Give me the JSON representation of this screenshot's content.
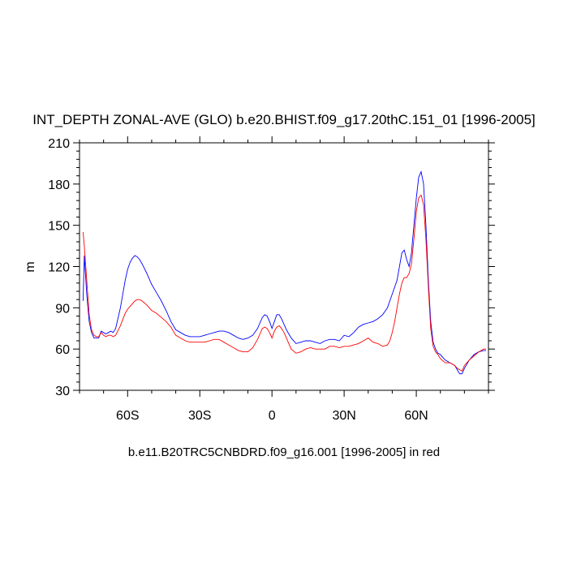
{
  "chart_data": {
    "type": "line",
    "title": "INT_DEPTH ZONAL-AVE (GLO) b.e20.BHIST.f09_g17.20thC.151_01 [1996-2005]",
    "xlabel": "b.e11.B20TRC5CNBDRD.f09_g16.001 [1996-2005] in red",
    "ylabel": "m",
    "xlim": [
      -80,
      90
    ],
    "ylim": [
      30,
      210
    ],
    "x_ticks": [
      -60,
      -30,
      0,
      30,
      60
    ],
    "x_tick_labels": [
      "60S",
      "30S",
      "0",
      "30N",
      "60N"
    ],
    "y_ticks": [
      30,
      60,
      90,
      120,
      150,
      180,
      210
    ],
    "y_tick_labels": [
      "30",
      "60",
      "90",
      "120",
      "150",
      "180",
      "210"
    ],
    "grid": false,
    "series": [
      {
        "color": "#0000ff",
        "x": [
          -78.5,
          -78,
          -77,
          -76,
          -75,
          -74,
          -73,
          -72,
          -71,
          -70,
          -69,
          -68,
          -67,
          -66,
          -65,
          -63,
          -61,
          -60,
          -59,
          -58,
          -57,
          -56,
          -55,
          -54,
          -52,
          -50,
          -48,
          -46,
          -44,
          -42,
          -40,
          -38,
          -36,
          -34,
          -32,
          -30,
          -28,
          -26,
          -24,
          -22,
          -20,
          -18,
          -16,
          -14,
          -12,
          -10,
          -8,
          -6,
          -5,
          -4,
          -3,
          -2,
          -1,
          0,
          1,
          2,
          3,
          4,
          5,
          6,
          7,
          8,
          10,
          12,
          14,
          16,
          18,
          20,
          22,
          24,
          26,
          28,
          30,
          32,
          34,
          36,
          38,
          40,
          42,
          44,
          46,
          48,
          49,
          50,
          51,
          52,
          53,
          54,
          55,
          56,
          57,
          58,
          59,
          60,
          61,
          62,
          63,
          64,
          65,
          66,
          67,
          68,
          69,
          70,
          72,
          74,
          76,
          77,
          78,
          79,
          80,
          82,
          84,
          86,
          88,
          89
        ],
        "y": [
          95,
          128,
          100,
          80,
          72,
          68,
          68,
          68,
          73,
          72,
          71,
          72,
          73,
          72,
          75,
          90,
          110,
          118,
          123,
          126,
          128,
          127,
          125,
          122,
          115,
          107,
          101,
          95,
          88,
          80,
          74,
          72,
          70,
          69,
          69,
          69,
          70,
          71,
          72,
          73,
          73,
          72,
          70,
          68,
          67,
          68,
          70,
          75,
          79,
          83,
          85,
          84,
          80,
          75,
          80,
          85,
          85,
          82,
          78,
          74,
          71,
          68,
          64,
          65,
          66,
          66,
          65,
          64,
          66,
          67,
          67,
          66,
          70,
          69,
          72,
          76,
          78,
          79,
          80,
          82,
          85,
          90,
          95,
          100,
          105,
          110,
          120,
          130,
          132,
          125,
          120,
          130,
          150,
          170,
          185,
          189,
          180,
          150,
          110,
          80,
          65,
          60,
          57,
          56,
          52,
          50,
          48,
          45,
          42,
          42,
          46,
          52,
          56,
          58,
          59,
          59
        ]
      },
      {
        "color": "#ff0000",
        "x": [
          -78.5,
          -78,
          -77,
          -76,
          -75,
          -74,
          -73,
          -72,
          -71,
          -70,
          -69,
          -68,
          -67,
          -66,
          -65,
          -63,
          -61,
          -60,
          -59,
          -58,
          -57,
          -56,
          -55,
          -54,
          -52,
          -50,
          -48,
          -46,
          -44,
          -42,
          -40,
          -38,
          -36,
          -34,
          -32,
          -30,
          -28,
          -26,
          -24,
          -22,
          -20,
          -18,
          -16,
          -14,
          -12,
          -10,
          -8,
          -6,
          -5,
          -4,
          -3,
          -2,
          -1,
          0,
          1,
          2,
          3,
          4,
          5,
          6,
          7,
          8,
          10,
          12,
          14,
          16,
          18,
          20,
          22,
          24,
          26,
          28,
          30,
          32,
          34,
          36,
          38,
          40,
          42,
          44,
          46,
          48,
          49,
          50,
          51,
          52,
          53,
          54,
          55,
          56,
          57,
          58,
          59,
          60,
          61,
          62,
          63,
          64,
          65,
          66,
          67,
          68,
          69,
          70,
          72,
          74,
          76,
          77,
          78,
          79,
          80,
          82,
          84,
          86,
          88,
          89
        ],
        "y": [
          145,
          135,
          110,
          85,
          74,
          70,
          69,
          69,
          72,
          70,
          69,
          70,
          70,
          69,
          70,
          77,
          86,
          89,
          91,
          93,
          95,
          96,
          96,
          95,
          92,
          88,
          86,
          83,
          80,
          76,
          70,
          68,
          66,
          65,
          65,
          65,
          65,
          66,
          67,
          67,
          65,
          63,
          61,
          59,
          58,
          58,
          61,
          67,
          71,
          75,
          76,
          75,
          72,
          68,
          73,
          76,
          77,
          75,
          72,
          68,
          64,
          60,
          57,
          58,
          60,
          61,
          60,
          60,
          60,
          62,
          62,
          61,
          62,
          62,
          63,
          64,
          66,
          68,
          65,
          64,
          62,
          63,
          66,
          72,
          80,
          90,
          100,
          108,
          112,
          112,
          115,
          122,
          140,
          160,
          170,
          172,
          165,
          140,
          105,
          75,
          62,
          58,
          56,
          53,
          50,
          50,
          48,
          46,
          45,
          44,
          48,
          52,
          55,
          58,
          60,
          60
        ]
      }
    ]
  }
}
